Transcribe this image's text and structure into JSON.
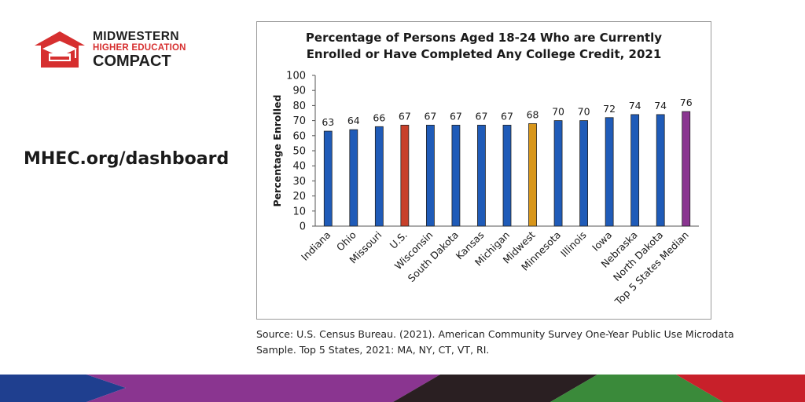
{
  "logo": {
    "line1": "MIDWESTERN",
    "line2": "HIGHER EDUCATION",
    "line3": "COMPACT",
    "icon": "graduation-cap-house-icon",
    "brand_color": "#d62f2f"
  },
  "website": "MHEC.org/dashboard",
  "chart_data": {
    "type": "bar",
    "title_line1": "Percentage of Persons Aged 18-24 Who are Currently",
    "title_line2": "Enrolled or Have Completed Any College Credit, 2021",
    "ylabel": "Percentage Enrolled",
    "xlabel": "",
    "ylim": [
      0,
      100
    ],
    "yticks": [
      0,
      10,
      20,
      30,
      40,
      50,
      60,
      70,
      80,
      90,
      100
    ],
    "categories": [
      "Indiana",
      "Ohio",
      "Missouri",
      "U.S.",
      "Wisconsin",
      "South Dakota",
      "Kansas",
      "Michigan",
      "Midwest",
      "Minnesota",
      "Illinois",
      "Iowa",
      "Nebraska",
      "North Dakota",
      "Top 5 States Median"
    ],
    "values": [
      63,
      64,
      66,
      67,
      67,
      67,
      67,
      67,
      68,
      70,
      70,
      72,
      74,
      74,
      76
    ],
    "colors": [
      "#1f5bb8",
      "#1f5bb8",
      "#1f5bb8",
      "#c8402a",
      "#1f5bb8",
      "#1f5bb8",
      "#1f5bb8",
      "#1f5bb8",
      "#d8961a",
      "#1f5bb8",
      "#1f5bb8",
      "#1f5bb8",
      "#1f5bb8",
      "#1f5bb8",
      "#8a3590"
    ],
    "grid": false,
    "legend": "none"
  },
  "source": {
    "line1": "Source: U.S. Census Bureau. (2021). American Community Survey One-Year Public Use Microdata",
    "line2": "Sample. Top 5 States, 2021: MA, NY, CT, VT, RI."
  },
  "footer_band_colors": [
    "#1f3f8f",
    "#8a3590",
    "#2a1f22",
    "#3a8a3a",
    "#c8202a"
  ]
}
